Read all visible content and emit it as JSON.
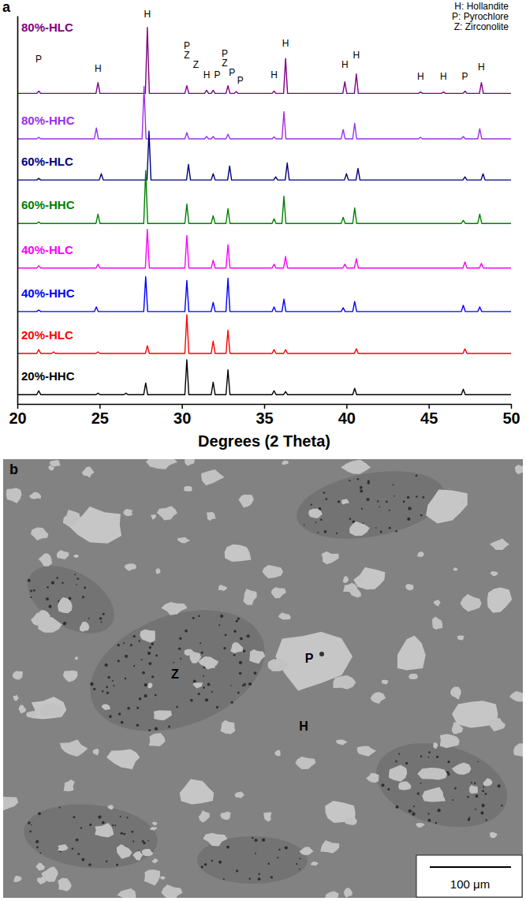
{
  "chart_data": {
    "type": "line",
    "panel_label": "a",
    "xlabel": "Degrees (2 Theta)",
    "xlim": [
      20,
      50
    ],
    "xticks": [
      20,
      25,
      30,
      35,
      40,
      45,
      50
    ],
    "ylim": [
      0,
      100
    ],
    "grid": false,
    "tick_labels": "x",
    "phase_key": [
      "H: Hollandite",
      "P: Pyrochlore",
      "Z: Zirconolite"
    ],
    "annotations": [
      {
        "text": "P",
        "x": 21.3,
        "y": 88
      },
      {
        "text": "H",
        "x": 24.9,
        "y": 85.5
      },
      {
        "text": "H",
        "x": 27.9,
        "y": 99.5
      },
      {
        "text": "P",
        "x": 30.3,
        "y": 91.5
      },
      {
        "text": "Z",
        "x": 30.3,
        "y": 89
      },
      {
        "text": "Z",
        "x": 30.85,
        "y": 86.5
      },
      {
        "text": "H",
        "x": 31.5,
        "y": 84
      },
      {
        "text": "P",
        "x": 32.15,
        "y": 84
      },
      {
        "text": "P",
        "x": 32.6,
        "y": 89.5
      },
      {
        "text": "Z",
        "x": 32.6,
        "y": 87
      },
      {
        "text": "P",
        "x": 33.05,
        "y": 84.5
      },
      {
        "text": "P",
        "x": 33.55,
        "y": 82.5
      },
      {
        "text": "H",
        "x": 35.6,
        "y": 84
      },
      {
        "text": "H",
        "x": 36.3,
        "y": 92
      },
      {
        "text": "H",
        "x": 39.9,
        "y": 86.5
      },
      {
        "text": "H",
        "x": 40.6,
        "y": 89
      },
      {
        "text": "H",
        "x": 44.5,
        "y": 83.5
      },
      {
        "text": "H",
        "x": 45.9,
        "y": 83.5
      },
      {
        "text": "P",
        "x": 47.2,
        "y": 83.5
      },
      {
        "text": "H",
        "x": 48.2,
        "y": 86
      }
    ],
    "series": [
      {
        "name": "80%-HLC",
        "color": "#800080",
        "x": [
          20,
          21.18,
          21.3,
          21.42,
          24.78,
          24.9,
          25.02,
          27.78,
          27.9,
          28.02,
          30.18,
          30.3,
          30.42,
          31.38,
          31.5,
          31.62,
          31.78,
          31.9,
          32.02,
          32.68,
          32.8,
          32.92,
          33.18,
          33.3,
          33.42,
          35.48,
          35.6,
          35.72,
          36.18,
          36.3,
          36.42,
          39.78,
          39.9,
          40.02,
          40.48,
          40.6,
          40.72,
          44.38,
          44.5,
          44.62,
          45.78,
          45.9,
          46.02,
          47.08,
          47.2,
          47.32,
          48.08,
          48.2,
          48.32,
          50
        ],
        "values": [
          80,
          80,
          80.6,
          80,
          80,
          82.8,
          80,
          80,
          97,
          80,
          80,
          82,
          80,
          80,
          80.8,
          80,
          80,
          80.8,
          80,
          80,
          82,
          80,
          80,
          80.5,
          80,
          80,
          80.6,
          80,
          80,
          89,
          80,
          80,
          83,
          80,
          80,
          85,
          80,
          80,
          80.4,
          80,
          80,
          80.4,
          80,
          80,
          80.6,
          80,
          80,
          82.8,
          80,
          80
        ]
      },
      {
        "name": "80%-HHC",
        "color": "#9b30e8",
        "x": [
          20,
          21.18,
          21.3,
          21.42,
          24.68,
          24.8,
          24.92,
          27.58,
          27.7,
          27.82,
          30.18,
          30.3,
          30.42,
          31.38,
          31.5,
          31.62,
          31.78,
          31.9,
          32.02,
          32.68,
          32.8,
          32.92,
          35.48,
          35.6,
          35.72,
          36.08,
          36.2,
          36.32,
          39.68,
          39.8,
          39.92,
          40.38,
          40.5,
          40.62,
          44.38,
          44.5,
          44.62,
          46.98,
          47.1,
          47.22,
          47.98,
          48.1,
          48.22,
          50
        ],
        "values": [
          68.3,
          68.3,
          68.7,
          68.3,
          68.3,
          71.1,
          68.3,
          68.3,
          81.8,
          68.3,
          68.3,
          69.9,
          68.3,
          68.3,
          68.9,
          68.3,
          68.3,
          68.9,
          68.3,
          68.3,
          69.5,
          68.3,
          68.3,
          68.8,
          68.3,
          68.3,
          75.3,
          68.3,
          68.3,
          70.7,
          68.3,
          68.3,
          72.3,
          68.3,
          68.3,
          68.7,
          68.3,
          68.3,
          68.9,
          68.3,
          68.3,
          70.9,
          68.3,
          68.3
        ]
      },
      {
        "name": "60%-HLC",
        "color": "#000080",
        "x": [
          20,
          21.18,
          21.3,
          21.42,
          24.98,
          25.1,
          25.22,
          27.88,
          28,
          28.12,
          30.28,
          30.4,
          30.52,
          31.78,
          31.9,
          32.02,
          32.78,
          32.9,
          33.02,
          35.58,
          35.7,
          35.82,
          36.28,
          36.4,
          36.52,
          39.88,
          40,
          40.12,
          40.58,
          40.7,
          40.82,
          47.08,
          47.2,
          47.32,
          48.18,
          48.3,
          48.42,
          50
        ],
        "values": [
          57.7,
          57.7,
          58.1,
          57.7,
          57.7,
          59.3,
          57.7,
          57.7,
          70.3,
          57.7,
          57.7,
          61.7,
          57.7,
          57.7,
          59.3,
          57.7,
          57.7,
          61.3,
          57.7,
          57.7,
          58.5,
          57.7,
          57.7,
          62.1,
          57.7,
          57.7,
          59.3,
          57.7,
          57.7,
          60.7,
          57.7,
          57.7,
          58.5,
          57.7,
          57.7,
          59.3,
          57.7,
          57.7
        ]
      },
      {
        "name": "60%-HHC",
        "color": "#008000",
        "x": [
          20,
          21.18,
          21.3,
          21.42,
          24.78,
          24.9,
          25.02,
          27.68,
          27.8,
          27.92,
          30.18,
          30.3,
          30.42,
          31.78,
          31.9,
          32.02,
          32.68,
          32.8,
          32.92,
          35.48,
          35.6,
          35.72,
          36.08,
          36.2,
          36.32,
          39.68,
          39.8,
          39.92,
          40.38,
          40.5,
          40.62,
          46.98,
          47.1,
          47.22,
          47.98,
          48.1,
          48.22,
          50
        ],
        "values": [
          46.5,
          46.5,
          46.9,
          46.5,
          46.5,
          48.9,
          46.5,
          46.5,
          60.1,
          46.5,
          46.5,
          51.5,
          46.5,
          46.5,
          48.5,
          46.5,
          46.5,
          50.3,
          46.5,
          46.5,
          47.7,
          46.5,
          46.5,
          53.5,
          46.5,
          46.5,
          48.1,
          46.5,
          46.5,
          50.5,
          46.5,
          46.5,
          47.3,
          46.5,
          46.5,
          48.9,
          46.5,
          46.5
        ]
      },
      {
        "name": "40%-HLC",
        "color": "#ff00ff",
        "x": [
          20,
          21.18,
          21.3,
          21.42,
          24.78,
          24.9,
          25.02,
          27.78,
          27.9,
          28.02,
          30.18,
          30.3,
          30.42,
          31.78,
          31.9,
          32.02,
          32.68,
          32.8,
          32.92,
          35.48,
          35.6,
          35.72,
          36.18,
          36.3,
          36.42,
          39.78,
          39.9,
          40.02,
          40.48,
          40.6,
          40.72,
          47.08,
          47.2,
          47.32,
          48.08,
          48.2,
          48.32,
          50
        ],
        "values": [
          35,
          35,
          35.6,
          35,
          35,
          36,
          35,
          35,
          45,
          35,
          35,
          43.4,
          35,
          35,
          37,
          35,
          35,
          41,
          35,
          35,
          36,
          35,
          35,
          38,
          35,
          35,
          36,
          35,
          35,
          37.4,
          35,
          35,
          36.6,
          35,
          35,
          36.2,
          35,
          35
        ]
      },
      {
        "name": "40%-HHC",
        "color": "#0000ff",
        "x": [
          20,
          21.18,
          21.3,
          21.42,
          24.68,
          24.8,
          24.92,
          27.68,
          27.8,
          27.92,
          30.18,
          30.3,
          30.42,
          31.78,
          31.9,
          32.02,
          32.68,
          32.8,
          32.92,
          35.48,
          35.6,
          35.72,
          36.08,
          36.2,
          36.32,
          39.68,
          39.8,
          39.92,
          40.38,
          40.5,
          40.62,
          46.98,
          47.1,
          47.22,
          47.98,
          48.1,
          48.22,
          50
        ],
        "values": [
          23.8,
          23.8,
          24.2,
          23.8,
          23.8,
          25,
          23.8,
          23.8,
          32.8,
          23.8,
          23.8,
          31.8,
          23.8,
          23.8,
          26.2,
          23.8,
          23.8,
          32.4,
          23.8,
          23.8,
          25,
          23.8,
          23.8,
          27,
          23.8,
          23.8,
          24.8,
          23.8,
          23.8,
          26.4,
          23.8,
          23.8,
          25.4,
          23.8,
          23.8,
          25,
          23.8,
          23.8
        ]
      },
      {
        "name": "20%-HLC",
        "color": "#ff0000",
        "x": [
          20,
          21.18,
          21.3,
          21.42,
          22.08,
          22.2,
          22.32,
          24.78,
          24.9,
          25.02,
          27.78,
          27.9,
          28.02,
          30.18,
          30.3,
          30.42,
          31.78,
          31.9,
          32.02,
          32.68,
          32.8,
          32.92,
          35.48,
          35.6,
          35.72,
          36.18,
          36.3,
          36.42,
          40.48,
          40.6,
          40.72,
          47.08,
          47.2,
          47.32,
          50
        ],
        "values": [
          13,
          13,
          14,
          13,
          13,
          13.4,
          13,
          13,
          13.4,
          13,
          13,
          15,
          13,
          13,
          23,
          13,
          13,
          16.2,
          13,
          13,
          19,
          13,
          13,
          14,
          13,
          13,
          14,
          13,
          13,
          14.2,
          13,
          13,
          14.2,
          13,
          13
        ]
      },
      {
        "name": "20%-HHC",
        "color": "#000000",
        "x": [
          20,
          21.18,
          21.3,
          21.42,
          24.78,
          24.9,
          25.02,
          26.48,
          26.6,
          26.72,
          27.68,
          27.8,
          27.92,
          30.18,
          30.3,
          30.42,
          31.78,
          31.9,
          32.02,
          32.68,
          32.8,
          32.92,
          35.48,
          35.6,
          35.72,
          36.18,
          36.3,
          36.42,
          40.38,
          40.5,
          40.62,
          46.98,
          47.1,
          47.22,
          50
        ],
        "values": [
          2.4,
          2.4,
          3.4,
          2.4,
          2.4,
          2.8,
          2.4,
          2.4,
          2.8,
          2.4,
          2.4,
          5.4,
          2.4,
          2.4,
          11.4,
          2.4,
          2.4,
          5.6,
          2.4,
          2.4,
          8.8,
          2.4,
          2.4,
          3.4,
          2.4,
          2.4,
          3.2,
          2.4,
          2.4,
          4,
          2.4,
          2.4,
          3.8,
          2.4,
          2.4
        ]
      }
    ]
  },
  "image_panel": {
    "panel_label": "b",
    "phase_labels": [
      "Z",
      "P",
      "H"
    ],
    "scale_bar": "100 μm"
  }
}
